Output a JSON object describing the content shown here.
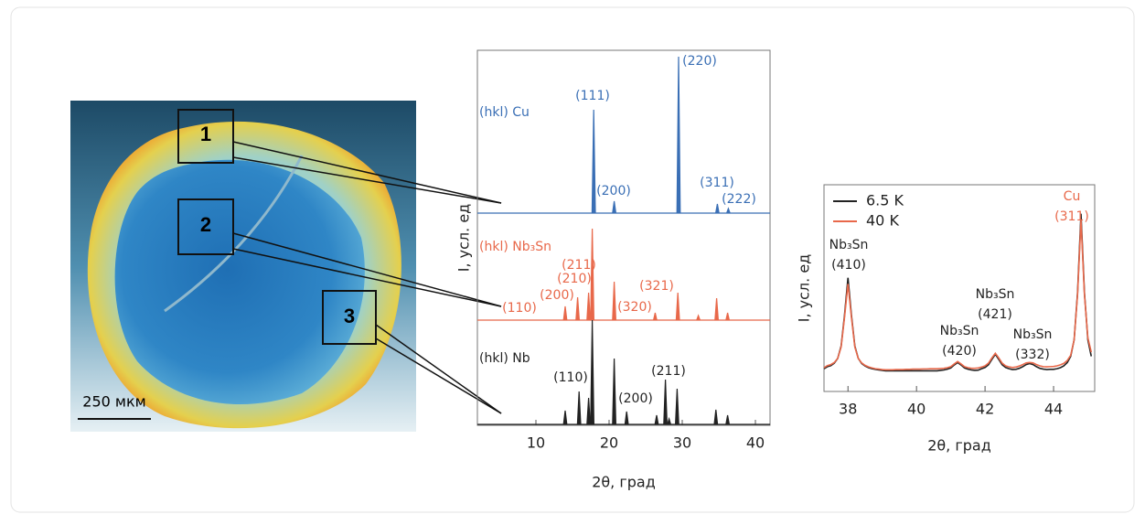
{
  "figure": {
    "regions": [
      "1",
      "2",
      "3"
    ],
    "scale_bar": "250 мкм"
  },
  "chart_data": [
    {
      "type": "stem",
      "xlabel": "2θ, град",
      "ylabel": "I, усл. ед",
      "xlim": [
        2,
        42
      ],
      "xticks": [
        10,
        20,
        30,
        40
      ],
      "series": [
        {
          "name": "(hkl)  Cu",
          "color": "#3a6fb5",
          "x": [
            17.9,
            20.7,
            29.5,
            34.8,
            36.3
          ],
          "values": [
            113,
            13,
            171,
            10,
            5
          ],
          "labels": [
            "(111)",
            "(200)",
            "(220)",
            "(311)",
            "(222)"
          ]
        },
        {
          "name": "(hkl)  Nb₃Sn",
          "color": "#e8684a",
          "x": [
            14.0,
            15.7,
            17.2,
            17.7,
            20.7,
            26.3,
            29.4,
            32.2,
            34.7,
            36.2
          ],
          "values": [
            15,
            25,
            30,
            100,
            42,
            8,
            30,
            5,
            24,
            8
          ],
          "labels": [
            "(110)",
            "(200)",
            "(210)",
            "(211)",
            null,
            "(320)",
            "(321)",
            null,
            null,
            null
          ]
        },
        {
          "name": "(hkl) Nb",
          "color": "#222222",
          "x": [
            14.0,
            15.9,
            17.2,
            17.7,
            20.7,
            22.4,
            26.5,
            27.7,
            28.2,
            29.3,
            34.6,
            36.2
          ],
          "values": [
            15,
            36,
            29,
            114,
            72,
            14,
            10,
            49,
            6,
            39,
            16,
            10
          ],
          "labels": [
            null,
            "(110)",
            null,
            null,
            null,
            "(200)",
            null,
            "(211)",
            null,
            null,
            null,
            null
          ]
        }
      ]
    },
    {
      "type": "line",
      "xlabel": "2θ, град",
      "ylabel": "I, усл. ед",
      "xlim": [
        37.3,
        45.2
      ],
      "xticks": [
        38,
        40,
        42,
        44
      ],
      "ylim": [
        0,
        100
      ],
      "legend": "upper left",
      "x": [
        37.3,
        37.4,
        37.5,
        37.6,
        37.7,
        37.8,
        37.9,
        38.0,
        38.1,
        38.2,
        38.3,
        38.4,
        38.5,
        38.6,
        38.7,
        38.8,
        38.9,
        39.0,
        39.1,
        39.2,
        39.3,
        39.4,
        39.5,
        39.6,
        39.7,
        39.8,
        39.9,
        40.0,
        40.1,
        40.2,
        40.3,
        40.4,
        40.5,
        40.6,
        40.7,
        40.8,
        40.9,
        41.0,
        41.1,
        41.2,
        41.3,
        41.4,
        41.5,
        41.6,
        41.7,
        41.8,
        41.9,
        42.0,
        42.1,
        42.2,
        42.3,
        42.4,
        42.5,
        42.6,
        42.7,
        42.8,
        42.9,
        43.0,
        43.1,
        43.2,
        43.3,
        43.4,
        43.5,
        43.6,
        43.7,
        43.8,
        43.9,
        44.0,
        44.1,
        44.2,
        44.3,
        44.4,
        44.5,
        44.6,
        44.7,
        44.8,
        44.9,
        45.0,
        45.1
      ],
      "series": [
        {
          "name": "6.5 K",
          "color": "#222222",
          "values": [
            11,
            12,
            12.5,
            13.7,
            16,
            22,
            37,
            55,
            37,
            22,
            16,
            13.5,
            12.3,
            11.5,
            11,
            10.7,
            10.4,
            10.2,
            10,
            10,
            10,
            10,
            10,
            10,
            10,
            10,
            10,
            10,
            10,
            10,
            10,
            10,
            10,
            10,
            10.2,
            10.4,
            10.8,
            11.4,
            12.8,
            14,
            12.8,
            11.4,
            10.8,
            10.4,
            10.2,
            10.3,
            11,
            11.6,
            12.9,
            15.5,
            18,
            15.5,
            12.9,
            11.6,
            11,
            10.6,
            10.7,
            11.2,
            12,
            13,
            13.5,
            13,
            12,
            11.2,
            10.8,
            10.6,
            10.7,
            10.7,
            11,
            11.5,
            12.4,
            14,
            17,
            25,
            48,
            86,
            48,
            25,
            17
          ]
        },
        {
          "name": "40 K",
          "color": "#e8684a",
          "values": [
            11.5,
            12.5,
            13,
            14,
            16,
            21.5,
            36,
            52,
            36,
            21.5,
            16,
            13.8,
            12.6,
            11.9,
            11.4,
            11,
            10.8,
            10.6,
            10.5,
            10.5,
            10.5,
            10.6,
            10.6,
            10.6,
            10.7,
            10.7,
            10.8,
            10.8,
            10.8,
            10.9,
            10.9,
            11,
            11,
            11,
            11.1,
            11.2,
            11.5,
            12,
            13.3,
            14.5,
            13.3,
            12,
            11.5,
            11.2,
            11.2,
            11.4,
            11.8,
            12.4,
            13.7,
            16.2,
            18.5,
            16.2,
            13.7,
            12.4,
            11.9,
            11.6,
            11.8,
            12.3,
            13,
            13.8,
            14,
            13.8,
            13,
            12.4,
            12,
            11.9,
            12,
            12.1,
            12.4,
            12.9,
            13.6,
            15,
            17.5,
            25,
            47,
            83,
            47,
            26,
            19
          ]
        }
      ],
      "annotations": [
        {
          "x": 38.0,
          "text": [
            "Nb₃Sn",
            "(410)"
          ],
          "color": "#222222"
        },
        {
          "x": 41.2,
          "text": [
            "Nb₃Sn",
            "(420)"
          ],
          "color": "#222222"
        },
        {
          "x": 42.3,
          "text": [
            "Nb₃Sn",
            "(421)"
          ],
          "color": "#222222"
        },
        {
          "x": 43.3,
          "text": [
            "Nb₃Sn",
            "(332)"
          ],
          "color": "#222222"
        },
        {
          "x": 44.8,
          "text": [
            "Cu",
            "(311)"
          ],
          "color": "#e8684a"
        }
      ]
    }
  ]
}
